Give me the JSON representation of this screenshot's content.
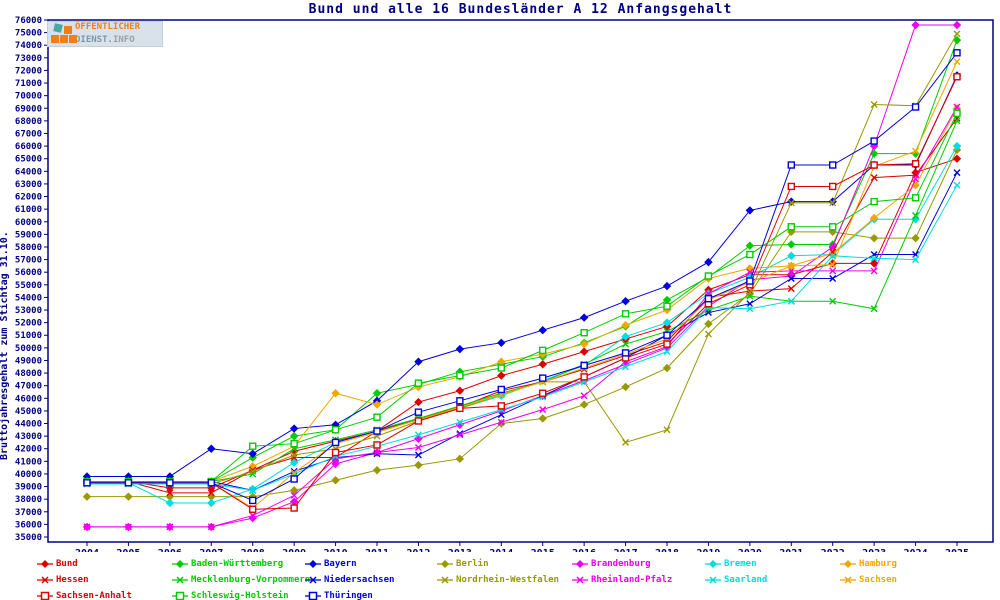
{
  "logo": {
    "line1": "ÖFFENTLICHER",
    "line2_a": "DIENST.",
    "line2_b": "INFO"
  },
  "chart_data": {
    "type": "line",
    "title": "Bund und alle 16 Bundesländer A 12 Anfangsgehalt",
    "ylabel": "Bruttojahresgehalt zum Stichtag 31.10.",
    "xlabel": "",
    "ylim": [
      35000,
      76000
    ],
    "y_tick_step": 1000,
    "grid": false,
    "legend_position": "bottom",
    "axis_color": "#000080",
    "x": [
      2004,
      2005,
      2006,
      2007,
      2008,
      2009,
      2010,
      2011,
      2012,
      2013,
      2014,
      2015,
      2016,
      2017,
      2018,
      2019,
      2020,
      2021,
      2022,
      2023,
      2024,
      2025
    ],
    "series": [
      {
        "name": "Bund",
        "color": "#dd0000",
        "marker": "diamond",
        "values": [
          39400,
          39400,
          38900,
          38900,
          40300,
          41800,
          42600,
          43400,
          45700,
          46600,
          47800,
          48700,
          49700,
          50700,
          51700,
          54600,
          55800,
          55800,
          56700,
          56700,
          63900,
          65000
        ]
      },
      {
        "name": "Baden-Württemberg",
        "color": "#00cc00",
        "marker": "diamond",
        "values": [
          39400,
          39400,
          39400,
          39400,
          41300,
          43000,
          43500,
          46400,
          47100,
          48100,
          48700,
          49300,
          50400,
          51700,
          53800,
          55600,
          58100,
          58200,
          58200,
          65400,
          65400,
          74400
        ]
      },
      {
        "name": "Bayern",
        "color": "#0000dd",
        "marker": "diamond",
        "values": [
          39800,
          39800,
          39800,
          42000,
          41600,
          43600,
          43900,
          45800,
          48900,
          49900,
          50400,
          51400,
          52400,
          53700,
          54900,
          56800,
          60900,
          61600,
          61600,
          64500,
          64500,
          71600
        ]
      },
      {
        "name": "Berlin",
        "color": "#999900",
        "marker": "diamond",
        "values": [
          38200,
          38200,
          38200,
          38200,
          38200,
          38700,
          39500,
          40300,
          40700,
          41200,
          44000,
          44400,
          45500,
          46900,
          48400,
          51900,
          54300,
          59200,
          59200,
          58700,
          58700,
          65700
        ]
      },
      {
        "name": "Brandenburg",
        "color": "#ee00ee",
        "marker": "diamond",
        "values": [
          35800,
          35800,
          35800,
          35800,
          36500,
          37800,
          40800,
          41700,
          42800,
          43900,
          45000,
          46200,
          47400,
          48700,
          50000,
          53300,
          55400,
          55700,
          58000,
          66000,
          75600,
          75600
        ]
      },
      {
        "name": "Bremen",
        "color": "#00dddd",
        "marker": "diamond",
        "values": [
          39300,
          39300,
          37700,
          37700,
          38800,
          40900,
          42500,
          43400,
          44300,
          45200,
          46200,
          47400,
          48600,
          50900,
          52000,
          54300,
          55600,
          57300,
          57400,
          60200,
          60200,
          66000
        ]
      },
      {
        "name": "Hamburg",
        "color": "#f0a800",
        "marker": "diamond",
        "values": [
          39400,
          39400,
          39400,
          39400,
          40600,
          42200,
          46400,
          45500,
          46900,
          47700,
          48900,
          49500,
          50300,
          51800,
          53000,
          55500,
          56300,
          56500,
          57500,
          60300,
          62900,
          69000
        ]
      },
      {
        "name": "Hessen",
        "color": "#dd0000",
        "marker": "x",
        "values": [
          39400,
          39400,
          38500,
          38500,
          40300,
          41300,
          41300,
          43400,
          44400,
          45300,
          46600,
          47300,
          48300,
          49400,
          50500,
          54000,
          54500,
          54700,
          57600,
          63500,
          63700,
          68200
        ]
      },
      {
        "name": "Mecklenburg-Vorpommern",
        "color": "#00cc00",
        "marker": "x",
        "values": [
          39400,
          39400,
          39400,
          39400,
          40000,
          42000,
          42700,
          43500,
          44400,
          45400,
          46400,
          47300,
          48700,
          50300,
          51300,
          53000,
          54100,
          53700,
          53700,
          53100,
          60500,
          68000
        ]
      },
      {
        "name": "Niedersachsen",
        "color": "#0000dd",
        "marker": "x",
        "values": [
          39400,
          39400,
          39400,
          39400,
          38700,
          40200,
          41300,
          41600,
          41500,
          43200,
          44700,
          46200,
          47700,
          49200,
          51000,
          52800,
          53500,
          55500,
          55500,
          57400,
          57400,
          63900
        ]
      },
      {
        "name": "Nordrhein-Westfalen",
        "color": "#999900",
        "marker": "x",
        "values": [
          39400,
          39400,
          39200,
          39200,
          40200,
          41500,
          42000,
          43000,
          44200,
          45200,
          46300,
          47300,
          47300,
          42500,
          43500,
          51100,
          54400,
          61500,
          61500,
          69300,
          69200,
          74900
        ]
      },
      {
        "name": "Rheinland-Pfalz",
        "color": "#ee00ee",
        "marker": "x",
        "values": [
          35800,
          35800,
          35800,
          35800,
          36700,
          38300,
          41200,
          41700,
          42100,
          43100,
          44100,
          45100,
          46200,
          48900,
          50100,
          54300,
          56000,
          56100,
          56100,
          56100,
          63400,
          69100
        ]
      },
      {
        "name": "Saarland",
        "color": "#00dddd",
        "marker": "x",
        "values": [
          39200,
          39200,
          39200,
          39200,
          38700,
          40000,
          41400,
          42200,
          43100,
          44100,
          45100,
          46100,
          47300,
          48500,
          49700,
          53200,
          53100,
          53700,
          57300,
          57100,
          57000,
          62900
        ]
      },
      {
        "name": "Sachsen",
        "color": "#f0a800",
        "marker": "x",
        "values": [
          39300,
          39300,
          39300,
          39300,
          37300,
          40100,
          42400,
          43300,
          44300,
          45300,
          46300,
          47300,
          48400,
          49500,
          50700,
          53800,
          55200,
          56500,
          56600,
          64400,
          65600,
          72700
        ]
      },
      {
        "name": "Sachsen-Anhalt",
        "color": "#dd0000",
        "marker": "square",
        "values": [
          39300,
          39300,
          39300,
          39300,
          37200,
          37300,
          41700,
          42300,
          44200,
          45200,
          45400,
          46400,
          47700,
          49200,
          50300,
          53500,
          55000,
          62800,
          62800,
          64500,
          64600,
          71500
        ]
      },
      {
        "name": "Schleswig-Holstein",
        "color": "#00cc00",
        "marker": "square",
        "values": [
          39400,
          39400,
          39400,
          39400,
          42200,
          42400,
          43500,
          44500,
          47200,
          47800,
          48400,
          49800,
          51200,
          52700,
          53300,
          55700,
          57400,
          59600,
          59600,
          61600,
          61900,
          68600
        ]
      },
      {
        "name": "Thüringen",
        "color": "#0000dd",
        "marker": "square",
        "values": [
          39300,
          39300,
          39300,
          39300,
          37900,
          39600,
          42500,
          43400,
          44900,
          45800,
          46700,
          47600,
          48600,
          49600,
          51000,
          53900,
          55300,
          64500,
          64500,
          66400,
          69100,
          73400
        ]
      }
    ],
    "legend_columns_x": [
      37,
      172,
      305,
      437,
      572,
      705,
      840
    ],
    "legend_rows_y": [
      6,
      22,
      38
    ]
  }
}
